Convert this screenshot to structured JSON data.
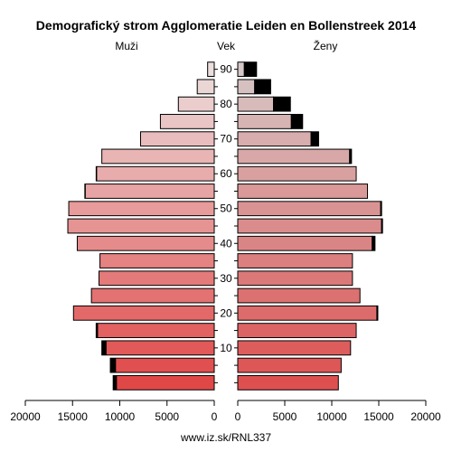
{
  "chart_data": {
    "type": "bar",
    "title": "Demografický strom Agglomeratie Leiden en Bollenstreek 2014",
    "left_label": "Muži",
    "center_label": "Vek",
    "right_label": "Ženy",
    "footer": "www.iz.sk/RNL337",
    "xlim": [
      0,
      20000
    ],
    "x_ticks": [
      "20000",
      "15000",
      "10000",
      "5000",
      "0",
      "0",
      "5000",
      "10000",
      "15000",
      "20000"
    ],
    "age_tick_labels": [
      "10",
      "20",
      "30",
      "40",
      "50",
      "60",
      "70",
      "80",
      "90"
    ],
    "age_groups": [
      "0-4",
      "5-9",
      "10-14",
      "15-19",
      "20-24",
      "25-29",
      "30-34",
      "35-39",
      "40-44",
      "45-49",
      "50-54",
      "55-59",
      "60-64",
      "65-69",
      "70-74",
      "75-79",
      "80-84",
      "85-89",
      "90+"
    ],
    "series": [
      {
        "name": "Muži",
        "values": [
          10700,
          11000,
          11900,
          12500,
          14900,
          13000,
          12200,
          12100,
          14500,
          15500,
          15400,
          13700,
          12500,
          11900,
          7800,
          5700,
          3800,
          1800,
          700
        ],
        "excess": [
          400,
          600,
          500,
          200,
          0,
          0,
          0,
          0,
          0,
          0,
          0,
          100,
          100,
          0,
          0,
          0,
          0,
          0,
          0
        ]
      },
      {
        "name": "Ženy",
        "values": [
          10700,
          11000,
          12000,
          12600,
          14900,
          13000,
          12200,
          12200,
          14600,
          15400,
          15300,
          13800,
          12600,
          12100,
          8600,
          6900,
          5600,
          3500,
          2000
        ],
        "base": [
          10700,
          11000,
          12000,
          12600,
          14800,
          13000,
          12200,
          12200,
          14300,
          15300,
          15200,
          13800,
          12600,
          11900,
          7800,
          5700,
          3800,
          1800,
          700
        ]
      }
    ]
  }
}
